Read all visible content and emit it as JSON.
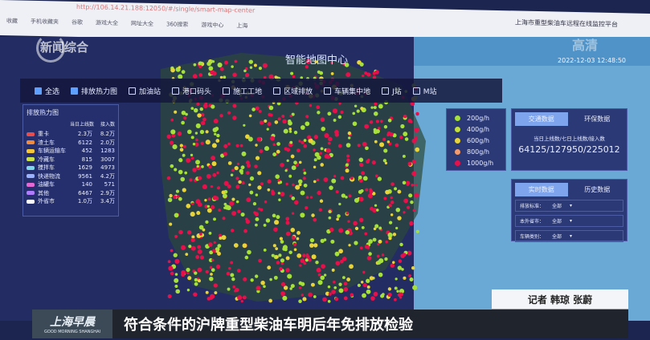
{
  "browser": {
    "url": "http://106.14.21.188:12050/#/single/smart-map-center",
    "favorites": [
      "收藏",
      "手机收藏夹",
      "谷歌",
      "游戏大全",
      "网址大全",
      "360搜索",
      "游戏中心",
      "上海"
    ],
    "platform": "上海市重型柴油车远程在线监控平台"
  },
  "channel": {
    "logo": "新闻综合",
    "hd": "高清"
  },
  "datetime": "2022-12-03 12:48:50",
  "map_title": "智能地图中心",
  "layers": [
    {
      "label": "全选",
      "checked": false
    },
    {
      "label": "排放热力图",
      "checked": true
    },
    {
      "label": "加油站",
      "checked": false
    },
    {
      "label": "港口码头",
      "checked": false
    },
    {
      "label": "施工工地",
      "checked": false
    },
    {
      "label": "区域排放",
      "checked": false
    },
    {
      "label": "车辆集中地",
      "checked": false
    },
    {
      "label": "J站",
      "checked": false
    },
    {
      "label": "M站",
      "checked": false
    }
  ],
  "left_panel": {
    "title": "排放热力图",
    "col_today": "当日上线数",
    "col_access": "接入数",
    "rows": [
      {
        "name": "重卡",
        "today": "2.3万",
        "access": "8.2万",
        "color": "#e84d4d"
      },
      {
        "name": "渣土车",
        "today": "6122",
        "access": "2.0万",
        "color": "#f08a3c"
      },
      {
        "name": "车辆运输车",
        "today": "452",
        "access": "1283",
        "color": "#f2c53a"
      },
      {
        "name": "冷藏车",
        "today": "815",
        "access": "3007",
        "color": "#c8e04a"
      },
      {
        "name": "搅拌车",
        "today": "1629",
        "access": "4973",
        "color": "#7fd6e8"
      },
      {
        "name": "快递物流",
        "today": "9561",
        "access": "4.2万",
        "color": "#9bb3ff"
      },
      {
        "name": "油罐车",
        "today": "140",
        "access": "571",
        "color": "#e36ad6"
      },
      {
        "name": "其他",
        "today": "6467",
        "access": "2.9万",
        "color": "#b07cff"
      },
      {
        "name": "外省市",
        "today": "1.0万",
        "access": "3.4万",
        "color": "#ffffff"
      }
    ]
  },
  "legend": [
    {
      "label": "200g/h",
      "color": "#a6e03a"
    },
    {
      "label": "400g/h",
      "color": "#c4e03a"
    },
    {
      "label": "600g/h",
      "color": "#e8d43a"
    },
    {
      "label": "800g/h",
      "color": "#f59a6a"
    },
    {
      "label": "1000g/h",
      "color": "#e8104a"
    }
  ],
  "traffic": {
    "tabs": [
      "交通数据",
      "环保数据"
    ],
    "label": "当日上线数/七日上线数/接入数",
    "value": "64125/127950/225012"
  },
  "realtime": {
    "tabs": [
      "实时数据",
      "历史数据"
    ],
    "filters": [
      {
        "label": "排放标准：",
        "value": "全部"
      },
      {
        "label": "本外省市：",
        "value": "全部"
      },
      {
        "label": "车辆类别：",
        "value": "全部"
      }
    ]
  },
  "caption": {
    "reporter": "记者 韩琼 张蔚",
    "brand": "上海早晨",
    "brand_en": "GOOD MORNING SHANGHAI",
    "headline": "符合条件的沪牌重型柴油车明后年免排放检验"
  }
}
